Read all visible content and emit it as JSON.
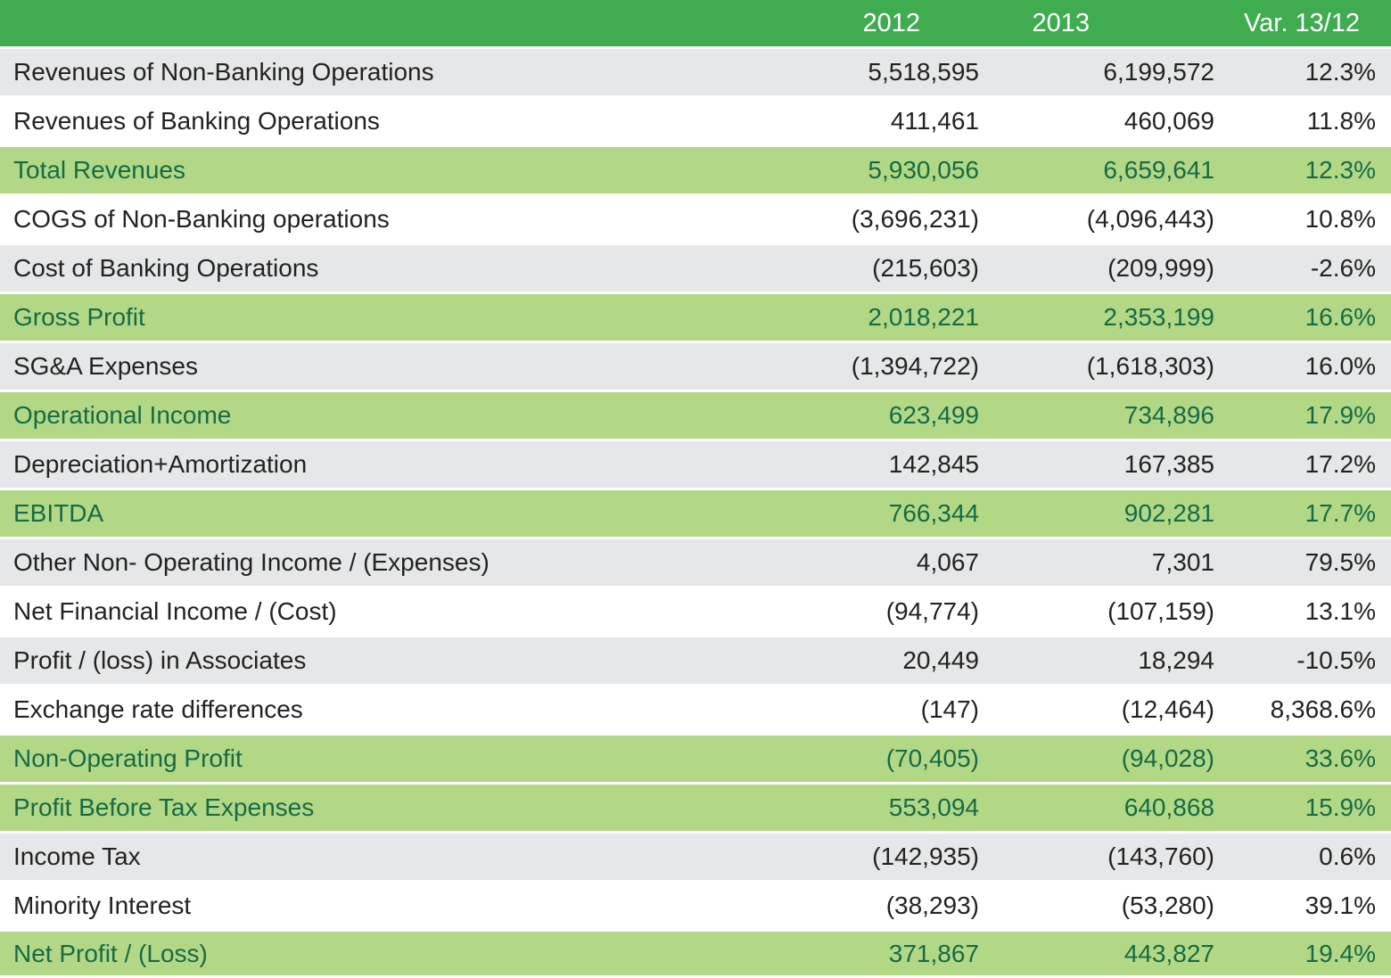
{
  "colors": {
    "header_background": "#3EAC4F",
    "header_text": "#FFFFFF",
    "highlight_row_background": "#B3D885",
    "highlight_row_text": "#156B48",
    "shaded_row_background": "#E6E7E8",
    "body_text": "#222222"
  },
  "table": {
    "header": {
      "col_label": "",
      "col_2012": "2012",
      "col_2013": "2013",
      "col_var": "Var. 13/12"
    },
    "rows": [
      {
        "label": "Revenues of Non-Banking Operations",
        "y2012": "5,518,595",
        "y2013": "6,199,572",
        "var": "12.3%",
        "band": "gray"
      },
      {
        "label": "Revenues of Banking Operations",
        "y2012": "411,461",
        "y2013": "460,069",
        "var": "11.8%",
        "band": "white"
      },
      {
        "label": "Total Revenues",
        "y2012": "5,930,056",
        "y2013": "6,659,641",
        "var": "12.3%",
        "band": "green"
      },
      {
        "label": "COGS of Non-Banking operations",
        "y2012": "(3,696,231)",
        "y2013": "(4,096,443)",
        "var": "10.8%",
        "band": "white"
      },
      {
        "label": "Cost of Banking Operations",
        "y2012": "(215,603)",
        "y2013": "(209,999)",
        "var": "-2.6%",
        "band": "gray"
      },
      {
        "label": "Gross Profit",
        "y2012": "2,018,221",
        "y2013": "2,353,199",
        "var": "16.6%",
        "band": "green"
      },
      {
        "label": "SG&A Expenses",
        "y2012": "(1,394,722)",
        "y2013": "(1,618,303)",
        "var": "16.0%",
        "band": "gray"
      },
      {
        "label": "Operational Income",
        "y2012": "623,499",
        "y2013": "734,896",
        "var": "17.9%",
        "band": "green"
      },
      {
        "label": "Depreciation+Amortization",
        "y2012": "142,845",
        "y2013": "167,385",
        "var": "17.2%",
        "band": "gray"
      },
      {
        "label": "EBITDA",
        "y2012": "766,344",
        "y2013": "902,281",
        "var": "17.7%",
        "band": "green"
      },
      {
        "label": "Other Non- Operating Income / (Expenses)",
        "y2012": "4,067",
        "y2013": "7,301",
        "var": "79.5%",
        "band": "gray"
      },
      {
        "label": "Net Financial Income / (Cost)",
        "y2012": "(94,774)",
        "y2013": "(107,159)",
        "var": "13.1%",
        "band": "white"
      },
      {
        "label": "Profit / (loss) in Associates",
        "y2012": "20,449",
        "y2013": "18,294",
        "var": "-10.5%",
        "band": "gray"
      },
      {
        "label": "Exchange rate differences",
        "y2012": "(147)",
        "y2013": "(12,464)",
        "var": "8,368.6%",
        "band": "white"
      },
      {
        "label": "Non-Operating Profit",
        "y2012": "(70,405)",
        "y2013": "(94,028)",
        "var": "33.6%",
        "band": "green"
      },
      {
        "label": "Profit Before Tax Expenses",
        "y2012": "553,094",
        "y2013": "640,868",
        "var": "15.9%",
        "band": "green"
      },
      {
        "label": "Income Tax",
        "y2012": "(142,935)",
        "y2013": "(143,760)",
        "var": "0.6%",
        "band": "gray"
      },
      {
        "label": "Minority Interest",
        "y2012": "(38,293)",
        "y2013": "(53,280)",
        "var": "39.1%",
        "band": "white"
      },
      {
        "label": "Net Profit / (Loss)",
        "y2012": "371,867",
        "y2013": "443,827",
        "var": "19.4%",
        "band": "green"
      }
    ]
  }
}
